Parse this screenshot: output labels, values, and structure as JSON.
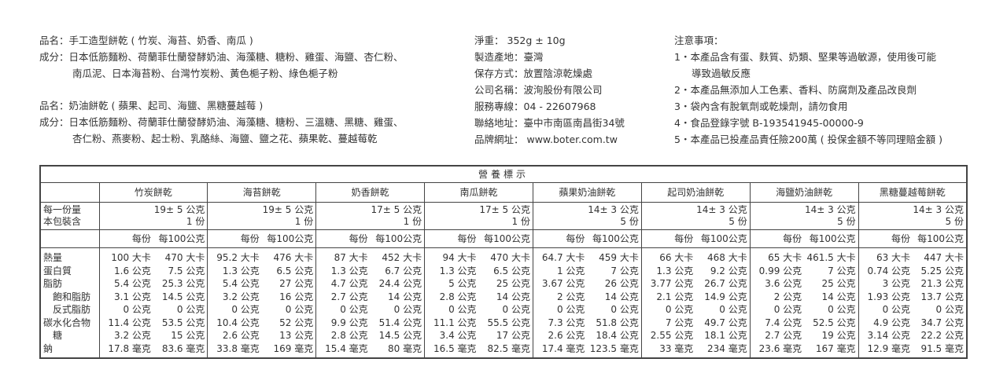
{
  "left": {
    "block1": {
      "name_label": "品名：",
      "name": "手工造型餅乾 ( 竹炭、海苔、奶香、南瓜 )",
      "ingredients_label": "成分：",
      "ingredients_line1": "日本低筋麵粉、荷蘭菲仕蘭發酵奶油、海藻糖、糖粉、雞蛋、海鹽、杏仁粉、",
      "ingredients_line2": "南瓜泥、日本海苔粉、台灣竹炭粉、黃色梔子粉、綠色梔子粉"
    },
    "block2": {
      "name_label": "品名：",
      "name": "奶油餅乾 ( 蘋果、起司、海鹽、黑糖蔓越莓 )",
      "ingredients_label": "成分：",
      "ingredients_line1": "日本低筋麵粉、荷蘭菲仕蘭發酵奶油、海藻糖、糖粉、三溫糖、黑糖、雞蛋、",
      "ingredients_line2": "杏仁粉、燕麥粉、起士粉、乳酪絲、海鹽、鹽之花、蘋果乾、蔓越莓乾"
    }
  },
  "info": [
    {
      "label": "淨重：",
      "value": " 352g ± 10g"
    },
    {
      "label": "製造產地：",
      "value": "臺灣"
    },
    {
      "label": "保存方式：",
      "value": "放置陰涼乾燥處"
    },
    {
      "label": "公司名稱：",
      "value": "波洵股份有限公司"
    },
    {
      "label": "服務專線：",
      "value": "04 - 22607968"
    },
    {
      "label": "聯絡地址：",
      "value": "臺中市南區南昌街34號"
    },
    {
      "label": "品牌網址：",
      "value": " www.boter.com.tw"
    }
  ],
  "notes": {
    "title": "注意事項：",
    "items": [
      "1・本產品含有蛋、麩質、奶類、堅果等過敏源，使用後可能",
      "導致過敏反應",
      "2・本產品無添加人工色素、香料、防腐劑及產品改良劑",
      "3・袋內含有脫氧劑或乾燥劑，請勿食用",
      "4・食品登錄字號 B-193541945-00000-9",
      "5・本產品已投產品責任險200萬 ( 投保金額不等同理賠金額 )"
    ]
  },
  "nutrition": {
    "title": "營養標示",
    "serving_label": "每一份量",
    "pack_label": "本包裝含",
    "per_serving_label": "每份",
    "per_100g_label": "每100公克",
    "nutrients": [
      "熱量",
      "蛋白質",
      "脂肪",
      "　飽和脂肪",
      "　反式脂肪",
      "碳水化合物",
      "　糖",
      "鈉"
    ],
    "products": [
      {
        "name": "竹炭餅乾",
        "serving": "19± 5 公克",
        "servings": "1 份",
        "per_serving": [
          "100 大卡",
          "1.6 公克",
          "5.4 公克",
          "3.1 公克",
          "0 公克",
          "11.4 公克",
          "3.2 公克",
          "17.8 毫克"
        ],
        "per_100g": [
          "470 大卡",
          "7.5 公克",
          "25.3 公克",
          "14.5 公克",
          "0 公克",
          "53.5 公克",
          "15 公克",
          "83.6 毫克"
        ]
      },
      {
        "name": "海苔餅乾",
        "serving": "19± 5 公克",
        "servings": "1 份",
        "per_serving": [
          "95.2 大卡",
          "1.3 公克",
          "5.4 公克",
          "3.2 公克",
          "0 公克",
          "10.4 公克",
          "2.6 公克",
          "33.8 毫克"
        ],
        "per_100g": [
          "476 大卡",
          "6.5 公克",
          "27 公克",
          "16 公克",
          "0 公克",
          "52 公克",
          "13 公克",
          "169 毫克"
        ]
      },
      {
        "name": "奶香餅乾",
        "serving": "17± 5 公克",
        "servings": "1 份",
        "per_serving": [
          "87 大卡",
          "1.3 公克",
          "4.7 公克",
          "2.7 公克",
          "0 公克",
          "9.9 公克",
          "2.8 公克",
          "15.4 毫克"
        ],
        "per_100g": [
          "452 大卡",
          "6.7 公克",
          "24.4 公克",
          "14 公克",
          "0 公克",
          "51.4 公克",
          "14.5 公克",
          "80 毫克"
        ]
      },
      {
        "name": "南瓜餅乾",
        "serving": "17± 5 公克",
        "servings": "1 份",
        "per_serving": [
          "94 大卡",
          "1.3 公克",
          "5 公克",
          "2.8 公克",
          "0 公克",
          "11.1 公克",
          "3.4 公克",
          "16.5 毫克"
        ],
        "per_100g": [
          "470 大卡",
          "6.5 公克",
          "25 公克",
          "14 公克",
          "0 公克",
          "55.5 公克",
          "17 公克",
          "82.5 毫克"
        ]
      },
      {
        "name": "蘋果奶油餅乾",
        "serving": "14± 3 公克",
        "servings": "5 份",
        "per_serving": [
          "64.7 大卡",
          "1 公克",
          "3.67 公克",
          "2 公克",
          "0 公克",
          "7.3 公克",
          "2.6 公克",
          "17.4 毫克"
        ],
        "per_100g": [
          "459 大卡",
          "7 公克",
          "26 公克",
          "14 公克",
          "0 公克",
          "51.8 公克",
          "18.4 公克",
          "123.5 毫克"
        ]
      },
      {
        "name": "起司奶油餅乾",
        "serving": "14± 3 公克",
        "servings": "5 份",
        "per_serving": [
          "66 大卡",
          "1.3 公克",
          "3.77 公克",
          "2.1 公克",
          "0 公克",
          "7 公克",
          "2.55 公克",
          "33 毫克"
        ],
        "per_100g": [
          "468 大卡",
          "9.2 公克",
          "26.7 公克",
          "14.9 公克",
          "0 公克",
          "49.7 公克",
          "18.1 公克",
          "234 毫克"
        ]
      },
      {
        "name": "海鹽奶油餅乾",
        "serving": "14± 3 公克",
        "servings": "5 份",
        "per_serving": [
          "65 大卡",
          "0.99 公克",
          "3.6 公克",
          "2 公克",
          "0 公克",
          "7.4 公克",
          "2.7 公克",
          "23.6 毫克"
        ],
        "per_100g": [
          "461.5 大卡",
          "7 公克",
          "25 公克",
          "14 公克",
          "0 公克",
          "52.5 公克",
          "19 公克",
          "167 毫克"
        ]
      },
      {
        "name": "黑糖蔓越莓餅乾",
        "serving": "14± 3 公克",
        "servings": "5 份",
        "per_serving": [
          "63 大卡",
          "0.74 公克",
          "3 公克",
          "1.93 公克",
          "0 公克",
          "4.9 公克",
          "3.14 公克",
          "12.9 毫克"
        ],
        "per_100g": [
          "447 大卡",
          "5.25 公克",
          "21.3 公克",
          "13.7 公克",
          "0 公克",
          "34.7 公克",
          "22.2 公克",
          "91.5 毫克"
        ]
      }
    ]
  }
}
